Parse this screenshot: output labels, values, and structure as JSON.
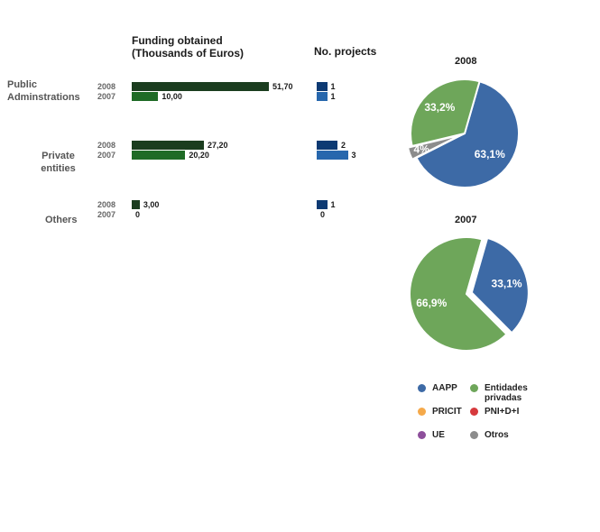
{
  "headers": {
    "funding": "Funding obtained (Thousands of Euros)",
    "projects": "No. projects"
  },
  "chart_data": [
    {
      "type": "bar",
      "title": "Funding obtained (Thousands of Euros)",
      "categories": [
        "Public Adminstrations",
        "Private entities",
        "Others"
      ],
      "series": [
        {
          "name": "2008",
          "values": [
            51.7,
            27.2,
            3.0
          ],
          "labels": [
            "51,70",
            "27,20",
            "3,00"
          ],
          "color": "#1b3d1f"
        },
        {
          "name": "2007",
          "values": [
            10.0,
            20.2,
            0
          ],
          "labels": [
            "10,00",
            "20,20",
            "0"
          ],
          "color": "#1f6b26"
        }
      ]
    },
    {
      "type": "bar",
      "title": "No. projects",
      "categories": [
        "Public Adminstrations",
        "Private entities",
        "Others"
      ],
      "series": [
        {
          "name": "2008",
          "values": [
            1,
            2,
            1
          ],
          "labels": [
            "1",
            "2",
            "1"
          ],
          "color": "#0d3a73"
        },
        {
          "name": "2007",
          "values": [
            1,
            3,
            0
          ],
          "labels": [
            "1",
            "3",
            "0"
          ],
          "color": "#2767ad"
        }
      ]
    },
    {
      "type": "pie",
      "title": "2008",
      "slices": [
        {
          "name": "AAPP",
          "value": 63.1,
          "label": "63,1%",
          "color": "#3d6aa6"
        },
        {
          "name": "Otros",
          "value": 3.7,
          "label": "4%",
          "color": "#8c8c8c"
        },
        {
          "name": "Entidades privadas",
          "value": 33.2,
          "label": "33,2%",
          "color": "#6ea65a"
        }
      ]
    },
    {
      "type": "pie",
      "title": "2007",
      "slices": [
        {
          "name": "AAPP",
          "value": 33.1,
          "label": "33,1%",
          "color": "#3d6aa6"
        },
        {
          "name": "Entidades privadas",
          "value": 66.9,
          "label": "66,9%",
          "color": "#6ea65a"
        }
      ]
    }
  ],
  "legend": [
    {
      "label": "AAPP",
      "color": "#3d6aa6"
    },
    {
      "label": "Entidades privadas",
      "color": "#6ea65a"
    },
    {
      "label": "PRICIT",
      "color": "#f5a94a"
    },
    {
      "label": "PNI+D+I",
      "color": "#d6393d"
    },
    {
      "label": "UE",
      "color": "#8d4f9b"
    },
    {
      "label": "Otros",
      "color": "#8c8c8c"
    }
  ]
}
